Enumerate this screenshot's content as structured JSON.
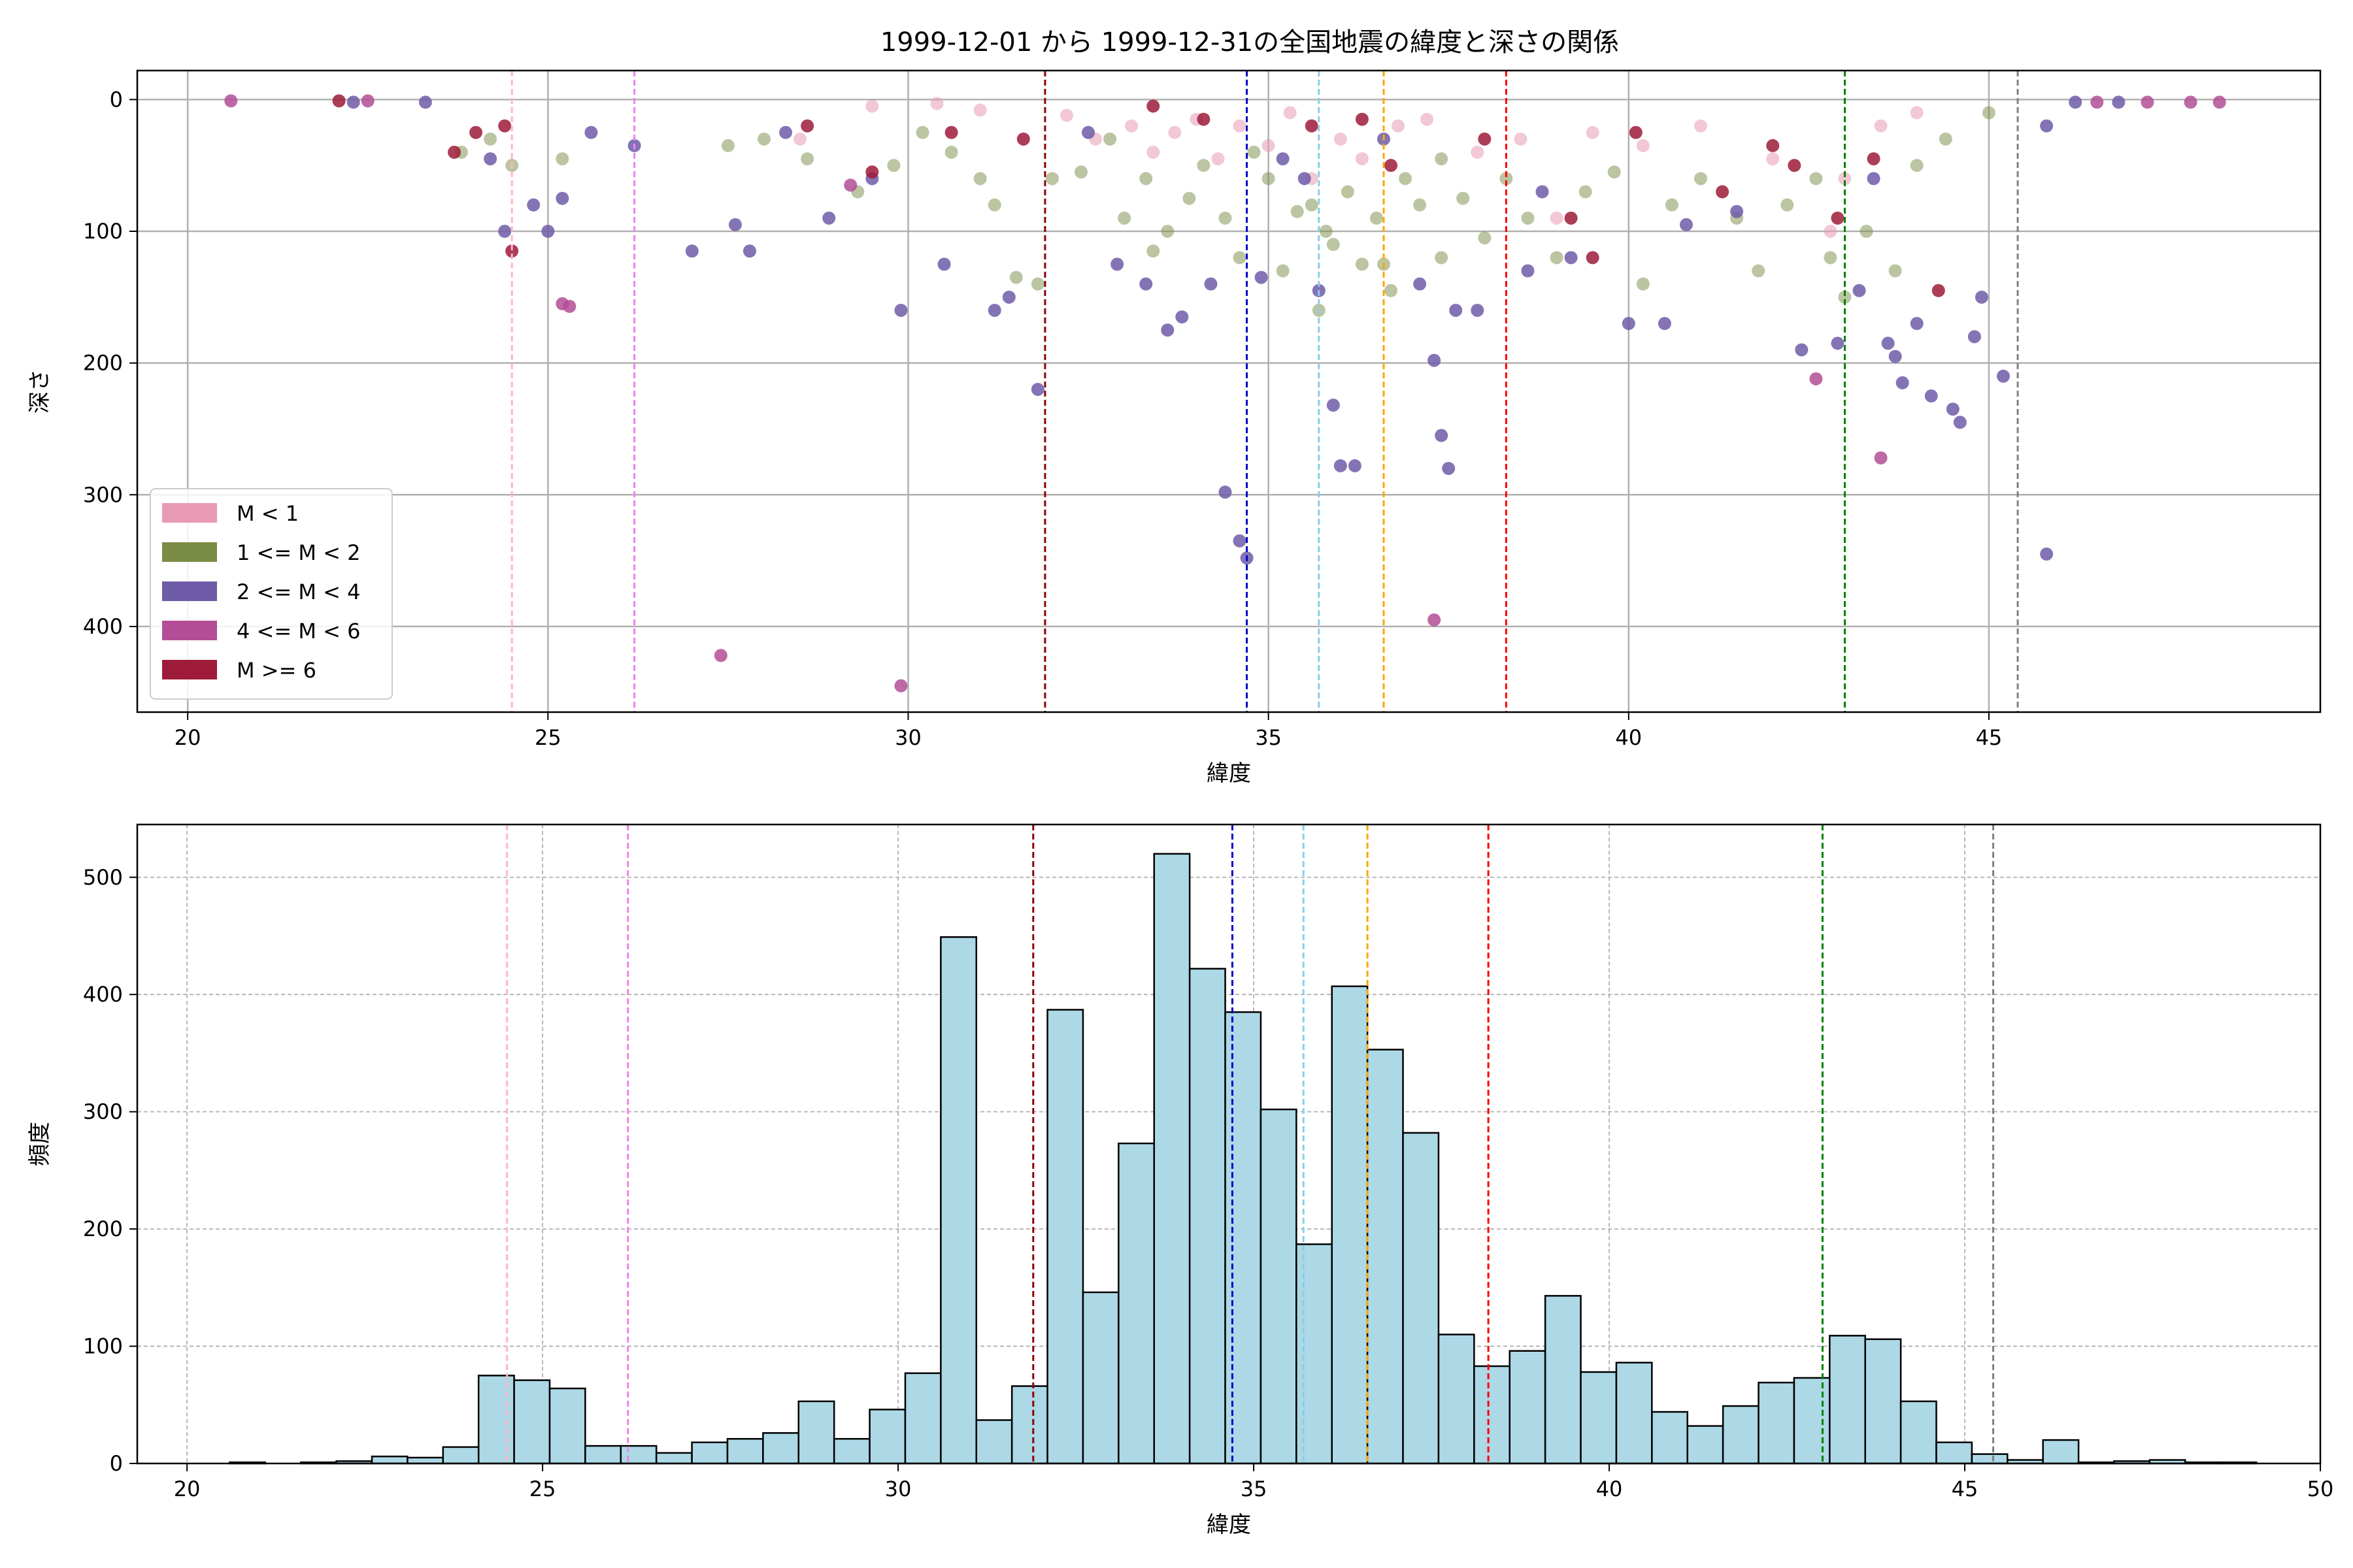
{
  "chart_data": [
    {
      "type": "scatter",
      "title": "1999-12-01 から 1999-12-31の全国地震の緯度と深さの関係",
      "xlabel": "緯度",
      "ylabel": "深さ",
      "xlim": [
        19.3,
        49.6
      ],
      "ylim": [
        465,
        -22
      ],
      "y_inverted": true,
      "x_ticks": [
        20,
        25,
        30,
        35,
        40,
        45
      ],
      "y_ticks": [
        0,
        100,
        200,
        300,
        400
      ],
      "grid": true,
      "legend_position": "lower-left",
      "legend": [
        {
          "label": "M < 1",
          "color": "#e89ab4"
        },
        {
          "label": "1 <= M < 2",
          "color": "#7a8c45"
        },
        {
          "label": "2 <= M < 4",
          "color": "#6f5ca8"
        },
        {
          "label": "4 <= M < 6",
          "color": "#b34e96"
        },
        {
          "label": "M >= 6",
          "color": "#9e1b3a"
        }
      ],
      "series": [
        {
          "name": "M < 1",
          "color": "#e89ab4",
          "points": [
            [
              30.4,
              3
            ],
            [
              31.0,
              8
            ],
            [
              32.2,
              12
            ],
            [
              32.6,
              30
            ],
            [
              33.1,
              20
            ],
            [
              33.4,
              40
            ],
            [
              33.7,
              25
            ],
            [
              34.0,
              15
            ],
            [
              34.3,
              45
            ],
            [
              34.6,
              20
            ],
            [
              35.0,
              35
            ],
            [
              35.3,
              10
            ],
            [
              35.6,
              60
            ],
            [
              36.0,
              30
            ],
            [
              36.3,
              45
            ],
            [
              36.8,
              20
            ],
            [
              37.2,
              15
            ],
            [
              37.9,
              40
            ],
            [
              38.5,
              30
            ],
            [
              39.0,
              90
            ],
            [
              39.5,
              25
            ],
            [
              40.2,
              35
            ],
            [
              41.0,
              20
            ],
            [
              42.0,
              45
            ],
            [
              42.8,
              100
            ],
            [
              43.0,
              60
            ],
            [
              43.5,
              20
            ],
            [
              44.0,
              10
            ],
            [
              28.5,
              30
            ],
            [
              29.5,
              5
            ]
          ]
        },
        {
          "name": "1 <= M < 2",
          "color": "#7a8c45",
          "points": [
            [
              23.8,
              40
            ],
            [
              24.2,
              30
            ],
            [
              24.5,
              50
            ],
            [
              25.2,
              45
            ],
            [
              27.5,
              35
            ],
            [
              28.0,
              30
            ],
            [
              28.6,
              45
            ],
            [
              29.3,
              70
            ],
            [
              29.8,
              50
            ],
            [
              30.2,
              25
            ],
            [
              30.6,
              40
            ],
            [
              31.0,
              60
            ],
            [
              31.2,
              80
            ],
            [
              31.5,
              135
            ],
            [
              31.8,
              140
            ],
            [
              32.0,
              60
            ],
            [
              32.4,
              55
            ],
            [
              32.8,
              30
            ],
            [
              33.0,
              90
            ],
            [
              33.3,
              60
            ],
            [
              33.6,
              100
            ],
            [
              33.9,
              75
            ],
            [
              34.1,
              50
            ],
            [
              34.4,
              90
            ],
            [
              34.6,
              120
            ],
            [
              34.8,
              40
            ],
            [
              35.0,
              60
            ],
            [
              35.2,
              130
            ],
            [
              35.4,
              85
            ],
            [
              35.6,
              80
            ],
            [
              35.7,
              160
            ],
            [
              35.9,
              110
            ],
            [
              36.1,
              70
            ],
            [
              36.3,
              125
            ],
            [
              36.5,
              90
            ],
            [
              36.7,
              145
            ],
            [
              36.9,
              60
            ],
            [
              37.1,
              80
            ],
            [
              37.4,
              45
            ],
            [
              37.7,
              75
            ],
            [
              38.0,
              105
            ],
            [
              38.3,
              60
            ],
            [
              38.6,
              90
            ],
            [
              39.0,
              120
            ],
            [
              39.4,
              70
            ],
            [
              39.8,
              55
            ],
            [
              40.2,
              140
            ],
            [
              40.6,
              80
            ],
            [
              41.0,
              60
            ],
            [
              41.5,
              90
            ],
            [
              41.8,
              130
            ],
            [
              42.2,
              80
            ],
            [
              42.6,
              60
            ],
            [
              42.8,
              120
            ],
            [
              43.0,
              150
            ],
            [
              43.3,
              100
            ],
            [
              43.7,
              130
            ],
            [
              44.0,
              50
            ],
            [
              44.4,
              30
            ],
            [
              45.0,
              10
            ],
            [
              36.6,
              125
            ],
            [
              35.8,
              100
            ],
            [
              37.4,
              120
            ],
            [
              33.4,
              115
            ]
          ]
        },
        {
          "name": "2 <= M < 4",
          "color": "#6f5ca8",
          "points": [
            [
              22.3,
              2
            ],
            [
              23.3,
              2
            ],
            [
              24.2,
              45
            ],
            [
              24.4,
              100
            ],
            [
              24.8,
              80
            ],
            [
              25.0,
              100
            ],
            [
              25.2,
              75
            ],
            [
              25.6,
              25
            ],
            [
              26.2,
              35
            ],
            [
              27.0,
              115
            ],
            [
              27.6,
              95
            ],
            [
              27.8,
              115
            ],
            [
              28.3,
              25
            ],
            [
              28.9,
              90
            ],
            [
              29.5,
              60
            ],
            [
              29.9,
              160
            ],
            [
              30.5,
              125
            ],
            [
              31.2,
              160
            ],
            [
              31.4,
              150
            ],
            [
              31.8,
              220
            ],
            [
              32.5,
              25
            ],
            [
              32.9,
              125
            ],
            [
              33.3,
              140
            ],
            [
              33.6,
              175
            ],
            [
              33.8,
              165
            ],
            [
              34.2,
              140
            ],
            [
              34.4,
              298
            ],
            [
              34.6,
              335
            ],
            [
              34.7,
              348
            ],
            [
              34.9,
              135
            ],
            [
              35.2,
              45
            ],
            [
              35.5,
              60
            ],
            [
              35.7,
              145
            ],
            [
              35.9,
              232
            ],
            [
              36.0,
              278
            ],
            [
              36.2,
              278
            ],
            [
              36.6,
              30
            ],
            [
              37.1,
              140
            ],
            [
              37.3,
              198
            ],
            [
              37.4,
              255
            ],
            [
              37.5,
              280
            ],
            [
              37.6,
              160
            ],
            [
              37.9,
              160
            ],
            [
              38.6,
              130
            ],
            [
              39.2,
              120
            ],
            [
              40.0,
              170
            ],
            [
              40.5,
              170
            ],
            [
              41.5,
              85
            ],
            [
              42.4,
              190
            ],
            [
              42.9,
              185
            ],
            [
              43.2,
              145
            ],
            [
              43.6,
              185
            ],
            [
              43.7,
              195
            ],
            [
              43.8,
              215
            ],
            [
              44.0,
              170
            ],
            [
              44.2,
              225
            ],
            [
              44.5,
              235
            ],
            [
              44.6,
              245
            ],
            [
              44.8,
              180
            ],
            [
              44.9,
              150
            ],
            [
              45.2,
              210
            ],
            [
              45.8,
              345
            ],
            [
              45.8,
              20
            ],
            [
              38.8,
              70
            ],
            [
              40.8,
              95
            ],
            [
              43.4,
              60
            ],
            [
              46.2,
              2
            ],
            [
              46.8,
              2
            ]
          ]
        },
        {
          "name": "4 <= M < 6",
          "color": "#b34e96",
          "points": [
            [
              20.6,
              1
            ],
            [
              22.5,
              1
            ],
            [
              25.2,
              155
            ],
            [
              25.3,
              157
            ],
            [
              27.4,
              422
            ],
            [
              29.9,
              445
            ],
            [
              37.3,
              395
            ],
            [
              42.6,
              212
            ],
            [
              43.5,
              272
            ],
            [
              46.5,
              2
            ],
            [
              47.2,
              2
            ],
            [
              47.8,
              2
            ],
            [
              48.2,
              2
            ],
            [
              29.2,
              65
            ]
          ]
        },
        {
          "name": "M >= 6",
          "color": "#9e1b3a",
          "points": [
            [
              22.1,
              1
            ],
            [
              23.7,
              40
            ],
            [
              24.0,
              25
            ],
            [
              24.4,
              20
            ],
            [
              24.5,
              115
            ],
            [
              28.6,
              20
            ],
            [
              29.5,
              55
            ],
            [
              30.6,
              25
            ],
            [
              31.6,
              30
            ],
            [
              33.4,
              5
            ],
            [
              34.1,
              15
            ],
            [
              35.6,
              20
            ],
            [
              36.3,
              15
            ],
            [
              38.0,
              30
            ],
            [
              39.2,
              90
            ],
            [
              39.5,
              120
            ],
            [
              40.1,
              25
            ],
            [
              42.0,
              35
            ],
            [
              42.3,
              50
            ],
            [
              42.9,
              90
            ],
            [
              43.4,
              45
            ],
            [
              44.3,
              145
            ],
            [
              36.7,
              50
            ],
            [
              41.3,
              70
            ]
          ]
        }
      ]
    },
    {
      "type": "bar",
      "title": "",
      "xlabel": "緯度",
      "ylabel": "頻度",
      "xlim": [
        19.3,
        50.0
      ],
      "ylim": [
        0,
        545
      ],
      "x_ticks": [
        20,
        25,
        30,
        35,
        40,
        45,
        50
      ],
      "y_ticks": [
        0,
        100,
        200,
        300,
        400,
        500
      ],
      "grid": true,
      "bar_color": "#add8e6",
      "bin_start": 20.6,
      "bin_width": 0.5,
      "values": [
        1,
        0,
        1,
        2,
        6,
        5,
        14,
        75,
        71,
        64,
        15,
        15,
        9,
        18,
        21,
        26,
        53,
        21,
        46,
        77,
        449,
        37,
        66,
        387,
        146,
        273,
        520,
        422,
        385,
        302,
        187,
        407,
        353,
        282,
        110,
        83,
        96,
        143,
        78,
        86,
        44,
        32,
        49,
        69,
        73,
        109,
        106,
        53,
        18,
        8,
        3,
        20,
        1,
        2,
        3,
        1,
        1
      ]
    }
  ],
  "reference_lines": [
    {
      "x": 24.5,
      "color": "#ffb6c1"
    },
    {
      "x": 26.2,
      "color": "#ee82ee"
    },
    {
      "x": 31.9,
      "color": "#8b0000"
    },
    {
      "x": 34.7,
      "color": "#0000cd"
    },
    {
      "x": 35.7,
      "color": "#87ceeb"
    },
    {
      "x": 36.6,
      "color": "#ffa500"
    },
    {
      "x": 38.3,
      "color": "#ff0000"
    },
    {
      "x": 43.0,
      "color": "#008000"
    },
    {
      "x": 45.4,
      "color": "#808080"
    }
  ]
}
